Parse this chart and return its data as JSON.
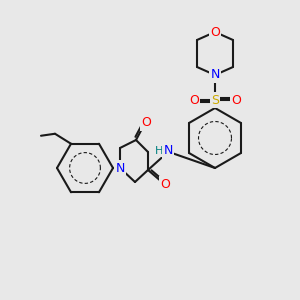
{
  "bg_color": "#e8e8e8",
  "bond_color": "#1a1a1a",
  "bond_width": 1.5,
  "atom_colors": {
    "O": "#ff0000",
    "N": "#0000ff",
    "N_amide": "#008080",
    "S": "#ccaa00",
    "C": "#1a1a1a",
    "H": "#008080"
  }
}
